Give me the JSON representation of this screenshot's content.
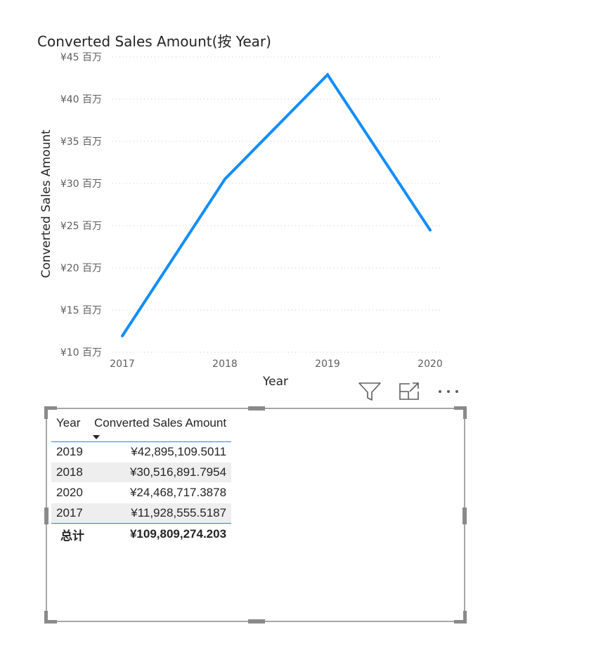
{
  "chart_data": {
    "type": "line",
    "title": "Converted Sales Amount(按 Year)",
    "xlabel": "Year",
    "ylabel": "Converted Sales Amount",
    "x": [
      "2017",
      "2018",
      "2019",
      "2020"
    ],
    "series": [
      {
        "values": [
          11928555.5187,
          30516891.7954,
          42895109.5011,
          24468717.3878
        ]
      }
    ],
    "ylim": [
      10000000,
      45000000
    ],
    "yticks": [
      {
        "value": 45000000,
        "label": "¥45 百万"
      },
      {
        "value": 40000000,
        "label": "¥40 百万"
      },
      {
        "value": 35000000,
        "label": "¥35 百万"
      },
      {
        "value": 30000000,
        "label": "¥30 百万"
      },
      {
        "value": 25000000,
        "label": "¥25 百万"
      },
      {
        "value": 20000000,
        "label": "¥20 百万"
      },
      {
        "value": 15000000,
        "label": "¥15 百万"
      },
      {
        "value": 10000000,
        "label": "¥10 百万"
      }
    ],
    "grid": true,
    "line_color": "#118dff",
    "grid_color": "#c8c6c4"
  },
  "header_icons": [
    "filter-icon",
    "focus-mode-icon",
    "more-options-icon"
  ],
  "table": {
    "columns": [
      "Year",
      "Converted Sales Amount"
    ],
    "rows": [
      {
        "year": "2019",
        "amount": "¥42,895,109.5011"
      },
      {
        "year": "2018",
        "amount": "¥30,516,891.7954"
      },
      {
        "year": "2020",
        "amount": "¥24,468,717.3878"
      },
      {
        "year": "2017",
        "amount": "¥11,928,555.5187"
      }
    ],
    "total_label": "总计",
    "total_amount": "¥109,809,274.203",
    "accent": "#118dff",
    "alt_row_color": "#eeeeee"
  }
}
